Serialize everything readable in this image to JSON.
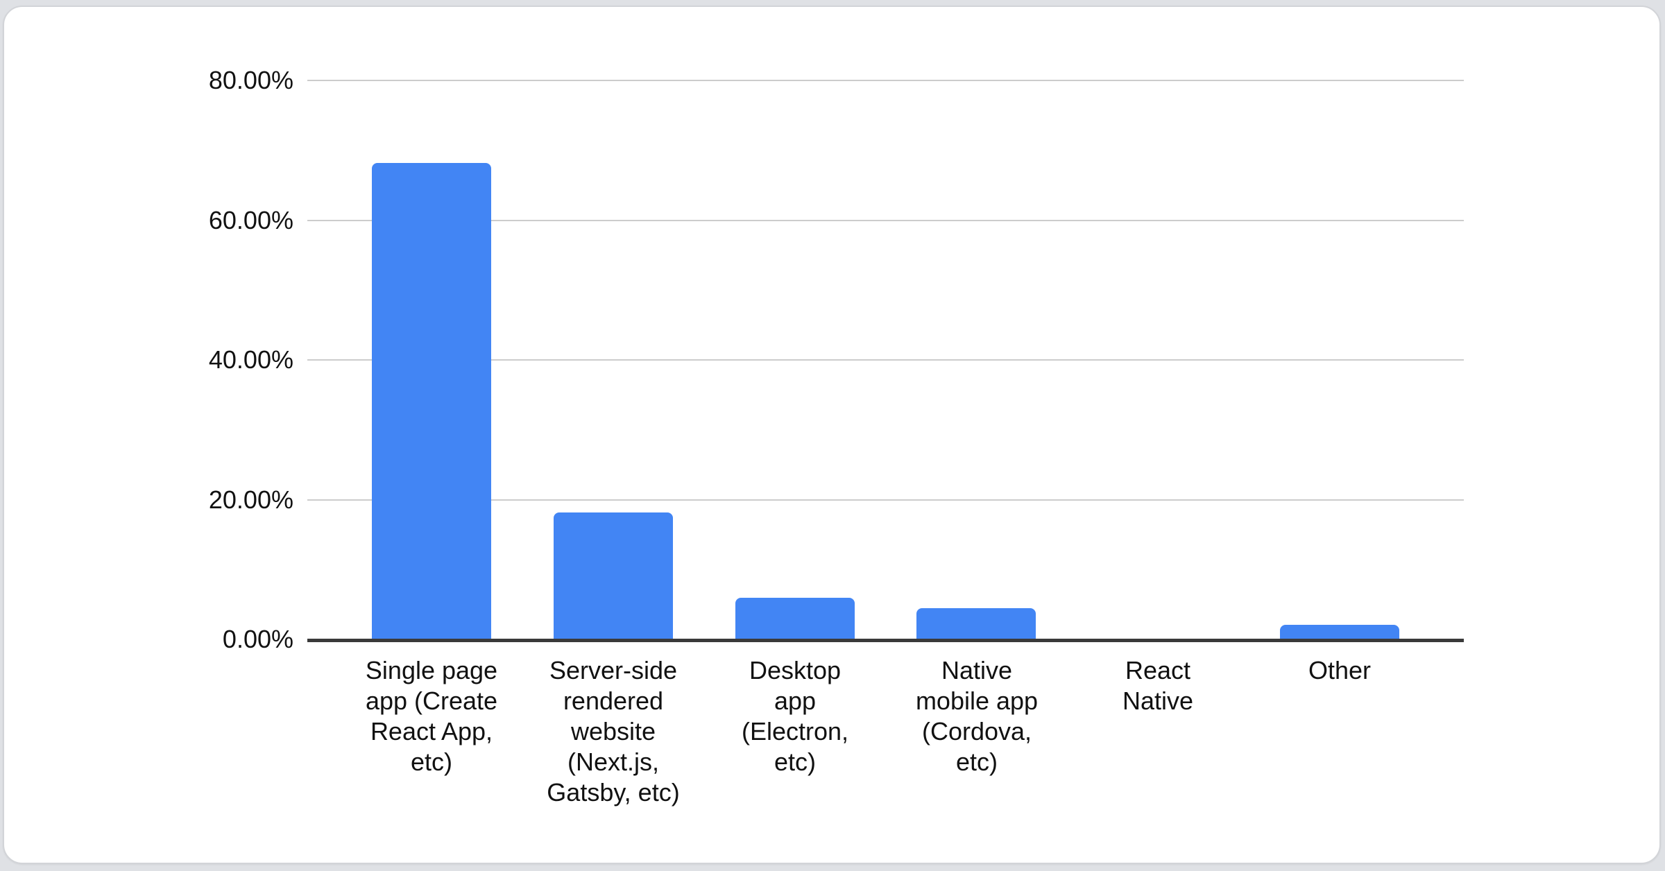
{
  "card": {
    "background": "#ffffff",
    "border_color": "#d2d4d8",
    "page_background": "#dfe1e5"
  },
  "chart_data": {
    "type": "bar",
    "title": "",
    "xlabel": "",
    "ylabel": "",
    "ylim": [
      0,
      80
    ],
    "grid": true,
    "legend": "none",
    "bar_color": "#4285f4",
    "grid_color": "#cccccc",
    "baseline_color": "#3a3a3a",
    "text_color": "#111111",
    "y_ticks": [
      {
        "label": "0.00%",
        "value": 0
      },
      {
        "label": "20.00%",
        "value": 20
      },
      {
        "label": "40.00%",
        "value": 40
      },
      {
        "label": "60.00%",
        "value": 60
      },
      {
        "label": "80.00%",
        "value": 80
      }
    ],
    "categories": [
      "Single page app (Create React App, etc)",
      "Server-side rendered website (Next.js, Gatsby, etc)",
      "Desktop app (Electron, etc)",
      "Native mobile app (Cordova, etc)",
      "React Native",
      "Other"
    ],
    "category_keys": [
      "single-page-app",
      "server-side-rendered-website",
      "desktop-app",
      "native-mobile-app",
      "react-native",
      "other"
    ],
    "category_lines": [
      [
        "Single page",
        "app (Create",
        "React App,",
        "etc)"
      ],
      [
        "Server-side",
        "rendered",
        "website",
        "(Next.js,",
        "Gatsby, etc)"
      ],
      [
        "Desktop",
        "app",
        "(Electron,",
        "etc)"
      ],
      [
        "Native",
        "mobile app",
        "(Cordova,",
        "etc)"
      ],
      [
        "React",
        "Native"
      ],
      [
        "Other"
      ]
    ],
    "values": [
      68.4,
      18.4,
      6.2,
      4.7,
      0.0,
      2.3
    ]
  }
}
